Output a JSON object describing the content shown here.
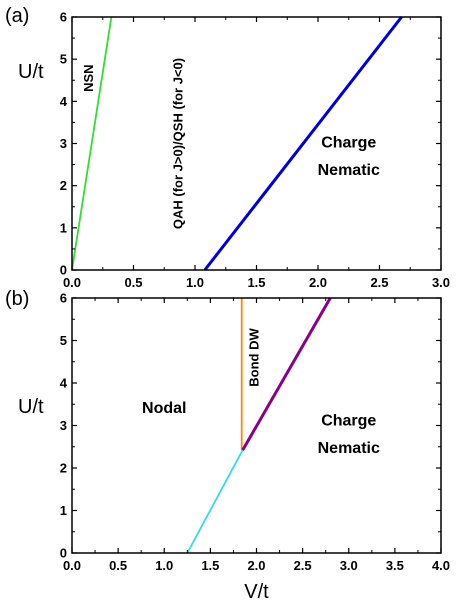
{
  "chart_data": [
    {
      "type": "line",
      "panel_label": "(a)",
      "xlabel": "",
      "ylabel": "U/t",
      "xlim": [
        0.0,
        3.0
      ],
      "ylim": [
        0,
        6
      ],
      "xticks": [
        "0.0",
        "0.5",
        "1.0",
        "1.5",
        "2.0",
        "2.5",
        "3.0"
      ],
      "yticks": [
        "0",
        "1",
        "2",
        "3",
        "4",
        "5",
        "6"
      ],
      "series": [
        {
          "color": "#33dd33",
          "x": [
            0.0,
            0.32
          ],
          "y": [
            0,
            6
          ]
        },
        {
          "color": "#0000cc",
          "x": [
            1.08,
            2.68
          ],
          "y": [
            0,
            6
          ]
        }
      ],
      "annotations": [
        {
          "text": "NSN",
          "x": 0.17,
          "y": 4.55,
          "rotation": -90,
          "size": "small"
        },
        {
          "text": "QAH (for J>0)/QSH (for J<0)",
          "x": 0.9,
          "y": 3.0,
          "rotation": -90,
          "size": "small"
        },
        {
          "text": "Charge",
          "x": 2.25,
          "y": 2.9,
          "rotation": 0,
          "size": "large"
        },
        {
          "text": "Nematic",
          "x": 2.25,
          "y": 2.25,
          "rotation": 0,
          "size": "large"
        }
      ]
    },
    {
      "type": "line",
      "panel_label": "(b)",
      "xlabel": "V/t",
      "ylabel": "U/t",
      "xlim": [
        0.0,
        4.0
      ],
      "ylim": [
        0,
        6
      ],
      "xticks": [
        "0.0",
        "0.5",
        "1.0",
        "1.5",
        "2.0",
        "2.5",
        "3.0",
        "3.5",
        "4.0"
      ],
      "yticks": [
        "0",
        "1",
        "2",
        "3",
        "4",
        "5",
        "6"
      ],
      "series": [
        {
          "color": "#33dddd",
          "x": [
            1.25,
            1.85
          ],
          "y": [
            0,
            2.42
          ]
        },
        {
          "color": "#ff8800",
          "x": [
            1.84,
            1.84
          ],
          "y": [
            2.42,
            6
          ]
        },
        {
          "color": "#880088",
          "x": [
            1.85,
            2.8
          ],
          "y": [
            2.42,
            6
          ]
        }
      ],
      "annotations": [
        {
          "text": "Nodal",
          "x": 1.0,
          "y": 3.3,
          "rotation": 0,
          "size": "large"
        },
        {
          "text": "Bond DW",
          "x": 2.02,
          "y": 4.6,
          "rotation": -90,
          "size": "small"
        },
        {
          "text": "Charge",
          "x": 3.0,
          "y": 3.0,
          "rotation": 0,
          "size": "large"
        },
        {
          "text": "Nematic",
          "x": 3.0,
          "y": 2.35,
          "rotation": 0,
          "size": "large"
        }
      ]
    }
  ]
}
